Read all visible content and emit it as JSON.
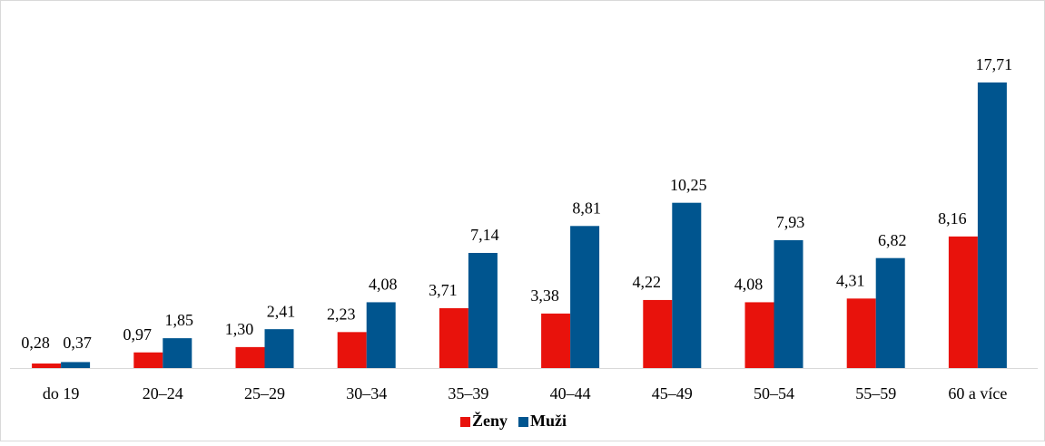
{
  "chart_data": {
    "type": "bar",
    "categories": [
      "do 19",
      "20–24",
      "25–29",
      "30–34",
      "35–39",
      "40–44",
      "45–49",
      "50–54",
      "55–59",
      "60 a více"
    ],
    "series": [
      {
        "name": "Ženy",
        "color": "#e8120c",
        "values": [
          0.28,
          0.97,
          1.3,
          2.23,
          3.71,
          3.38,
          4.22,
          4.08,
          4.31,
          8.16
        ],
        "value_labels": [
          "0,28",
          "0,97",
          "1,30",
          "2,23",
          "3,71",
          "3,38",
          "4,22",
          "4,08",
          "4,31",
          "8,16"
        ]
      },
      {
        "name": "Muži",
        "color": "#00558f",
        "values": [
          0.37,
          1.85,
          2.41,
          4.08,
          7.14,
          8.81,
          10.25,
          7.93,
          6.82,
          17.71
        ],
        "value_labels": [
          "0,37",
          "1,85",
          "2,41",
          "4,08",
          "7,14",
          "8,81",
          "10,25",
          "7,93",
          "6,82",
          "17,71"
        ]
      }
    ]
  }
}
